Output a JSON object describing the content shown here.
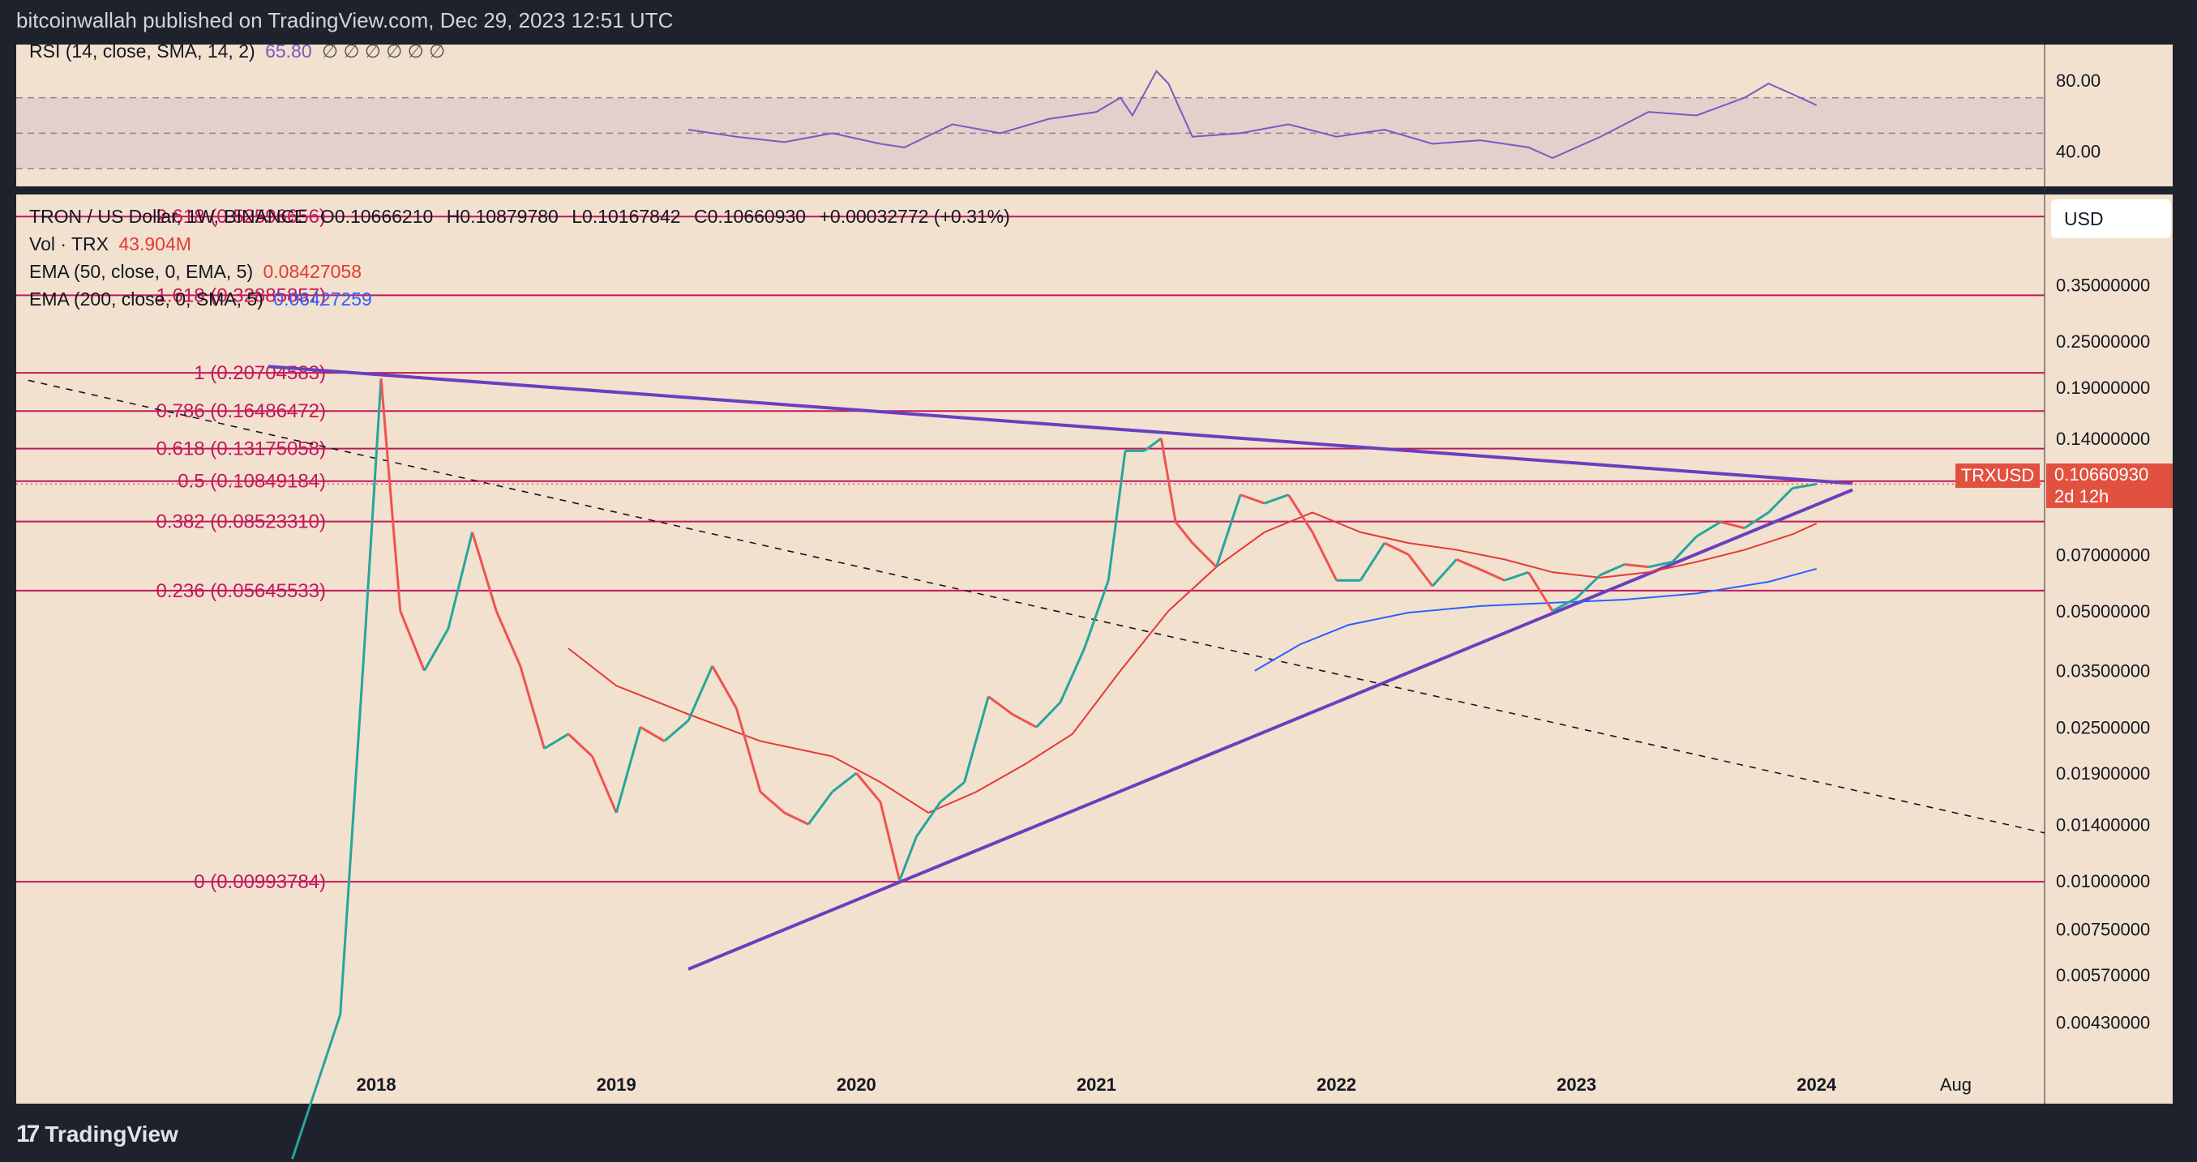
{
  "header": {
    "published": "bitcoinwallah published on TradingView.com, Dec 29, 2023 12:51 UTC"
  },
  "rsi": {
    "title": "RSI (14, close, SMA, 14, 2)",
    "value": "65.80",
    "extra": "∅ ∅ ∅ ∅ ∅ ∅",
    "ticks": [
      "80.00",
      "40.00"
    ]
  },
  "legend": {
    "symbol": "TRON / US Dollar, 1W, BINANCE",
    "o_label": "O",
    "o_val": "0.10666210",
    "h_label": "H",
    "h_val": "0.10879780",
    "l_label": "L",
    "l_val": "0.10167842",
    "c_label": "C",
    "c_val": "0.10660930",
    "change": "+0.00032772 (+0.31%)",
    "vol_label": "Vol · TRX",
    "vol_val": "43.904M",
    "ema50_label": "EMA (50, close, 0, EMA, 5)",
    "ema50_val": "0.08427058",
    "ema200_label": "EMA (200, close, 0, SMA, 5)",
    "ema200_val": "0.06427259"
  },
  "usd_button": "USD",
  "price_tag": {
    "symbol": "TRXUSD",
    "price": "0.10660930",
    "countdown": "2d 12h"
  },
  "footer": {
    "brand": "TradingView"
  },
  "colors": {
    "background": "#f2e1cf",
    "fib": "#c2185b",
    "trendline": "#6a3fbf",
    "ema50": "#e53935",
    "ema200": "#2962ff",
    "up": "#26a69a",
    "down": "#ef5350"
  },
  "chart_data": {
    "type": "line",
    "scale": "log",
    "price_axis": {
      "ticks": [
        0.35,
        0.25,
        0.19,
        0.14,
        0.1066093,
        0.07,
        0.05,
        0.035,
        0.025,
        0.019,
        0.014,
        0.01,
        0.0075,
        0.0057,
        0.0043
      ],
      "tick_labels": [
        "0.35000000",
        "0.25000000",
        "0.19000000",
        "0.14000000",
        "",
        "0.07000000",
        "0.05000000",
        "0.03500000",
        "0.02500000",
        "0.01900000",
        "0.01400000",
        "0.01000000",
        "0.00750000",
        "0.00570000",
        "0.00430000"
      ]
    },
    "time_axis": {
      "labels": [
        "2018",
        "2019",
        "2020",
        "2021",
        "2022",
        "2023",
        "2024",
        "Aug"
      ],
      "x": [
        2018.0,
        2019.0,
        2020.0,
        2021.0,
        2022.0,
        2023.0,
        2024.0,
        2024.58
      ],
      "range": [
        2016.5,
        2024.95
      ]
    },
    "fib_levels": [
      {
        "label": "2.618 (0.52596656)",
        "value": 0.52596656
      },
      {
        "label": "1.618 (0.32885857)",
        "value": 0.32885857
      },
      {
        "label": "1 (0.20704583)",
        "value": 0.20704583
      },
      {
        "label": "0.786 (0.16486472)",
        "value": 0.16486472
      },
      {
        "label": "0.618 (0.13175058)",
        "value": 0.13175058
      },
      {
        "label": "0.5 (0.10849184)",
        "value": 0.10849184
      },
      {
        "label": "0.382 (0.08523310)",
        "value": 0.0852331
      },
      {
        "label": "0.236 (0.05645533)",
        "value": 0.05645533
      },
      {
        "label": "0 (0.00993784)",
        "value": 0.00993784
      }
    ],
    "trendlines": [
      {
        "name": "upper",
        "points": [
          [
            2017.55,
            0.215
          ],
          [
            2024.15,
            0.107
          ]
        ],
        "style": "solid"
      },
      {
        "name": "lower",
        "points": [
          [
            2019.3,
            0.0059
          ],
          [
            2024.15,
            0.103
          ]
        ],
        "style": "solid"
      },
      {
        "name": "diagonal",
        "points": [
          [
            2016.55,
            0.198
          ],
          [
            2024.95,
            0.0133
          ]
        ],
        "style": "dashed"
      }
    ],
    "price_series": {
      "name": "TRXUSD",
      "x": [
        2017.65,
        2017.85,
        2017.95,
        2018.02,
        2018.1,
        2018.2,
        2018.3,
        2018.4,
        2018.5,
        2018.6,
        2018.7,
        2018.8,
        2018.9,
        2019.0,
        2019.1,
        2019.2,
        2019.3,
        2019.4,
        2019.5,
        2019.6,
        2019.7,
        2019.8,
        2019.9,
        2020.0,
        2020.1,
        2020.18,
        2020.25,
        2020.35,
        2020.45,
        2020.55,
        2020.65,
        2020.75,
        2020.85,
        2020.95,
        2021.05,
        2021.12,
        2021.2,
        2021.27,
        2021.33,
        2021.4,
        2021.5,
        2021.6,
        2021.7,
        2021.8,
        2021.9,
        2022.0,
        2022.1,
        2022.2,
        2022.3,
        2022.4,
        2022.5,
        2022.6,
        2022.7,
        2022.8,
        2022.9,
        2023.0,
        2023.1,
        2023.2,
        2023.3,
        2023.4,
        2023.5,
        2023.6,
        2023.7,
        2023.8,
        2023.9,
        2024.0
      ],
      "y": [
        0.0019,
        0.0045,
        0.04,
        0.2,
        0.05,
        0.035,
        0.045,
        0.08,
        0.05,
        0.036,
        0.022,
        0.024,
        0.021,
        0.015,
        0.025,
        0.023,
        0.026,
        0.036,
        0.028,
        0.017,
        0.015,
        0.014,
        0.017,
        0.019,
        0.016,
        0.01,
        0.013,
        0.016,
        0.018,
        0.03,
        0.027,
        0.025,
        0.029,
        0.04,
        0.06,
        0.13,
        0.13,
        0.14,
        0.085,
        0.075,
        0.065,
        0.1,
        0.095,
        0.1,
        0.08,
        0.06,
        0.06,
        0.075,
        0.07,
        0.058,
        0.068,
        0.064,
        0.06,
        0.063,
        0.05,
        0.054,
        0.062,
        0.066,
        0.065,
        0.067,
        0.078,
        0.085,
        0.082,
        0.09,
        0.104,
        0.1066
      ]
    },
    "ema50": {
      "name": "EMA (50, close, 0, EMA, 5)",
      "x": [
        2018.8,
        2019.0,
        2019.3,
        2019.6,
        2019.9,
        2020.1,
        2020.3,
        2020.5,
        2020.7,
        2020.9,
        2021.1,
        2021.3,
        2021.5,
        2021.7,
        2021.9,
        2022.1,
        2022.3,
        2022.5,
        2022.7,
        2022.9,
        2023.1,
        2023.3,
        2023.5,
        2023.7,
        2023.9,
        2024.0
      ],
      "y": [
        0.04,
        0.032,
        0.027,
        0.023,
        0.021,
        0.018,
        0.015,
        0.017,
        0.02,
        0.024,
        0.035,
        0.05,
        0.065,
        0.08,
        0.09,
        0.08,
        0.075,
        0.072,
        0.068,
        0.063,
        0.061,
        0.063,
        0.067,
        0.072,
        0.079,
        0.0843
      ]
    },
    "ema200": {
      "name": "EMA (200, close, 0, SMA, 5)",
      "x": [
        2021.66,
        2021.85,
        2022.05,
        2022.3,
        2022.6,
        2022.9,
        2023.2,
        2023.5,
        2023.8,
        2024.0
      ],
      "y": [
        0.035,
        0.041,
        0.046,
        0.0495,
        0.0515,
        0.0525,
        0.0535,
        0.0555,
        0.0595,
        0.0643
      ]
    },
    "rsi_series": {
      "name": "RSI (14, close, SMA, 14, 2)",
      "range": [
        20,
        100
      ],
      "levels": [
        70,
        50,
        30
      ],
      "x": [
        2019.3,
        2019.5,
        2019.7,
        2019.9,
        2020.1,
        2020.2,
        2020.4,
        2020.6,
        2020.8,
        2021.0,
        2021.1,
        2021.15,
        2021.25,
        2021.3,
        2021.4,
        2021.6,
        2021.8,
        2022.0,
        2022.2,
        2022.4,
        2022.6,
        2022.8,
        2022.9,
        2023.1,
        2023.3,
        2023.5,
        2023.7,
        2023.8,
        2023.9,
        2024.0
      ],
      "y": [
        52,
        48,
        45,
        50,
        44,
        42,
        55,
        50,
        58,
        62,
        70,
        60,
        85,
        78,
        48,
        50,
        55,
        48,
        52,
        44,
        46,
        42,
        36,
        48,
        62,
        60,
        70,
        78,
        72,
        65.8
      ]
    }
  }
}
